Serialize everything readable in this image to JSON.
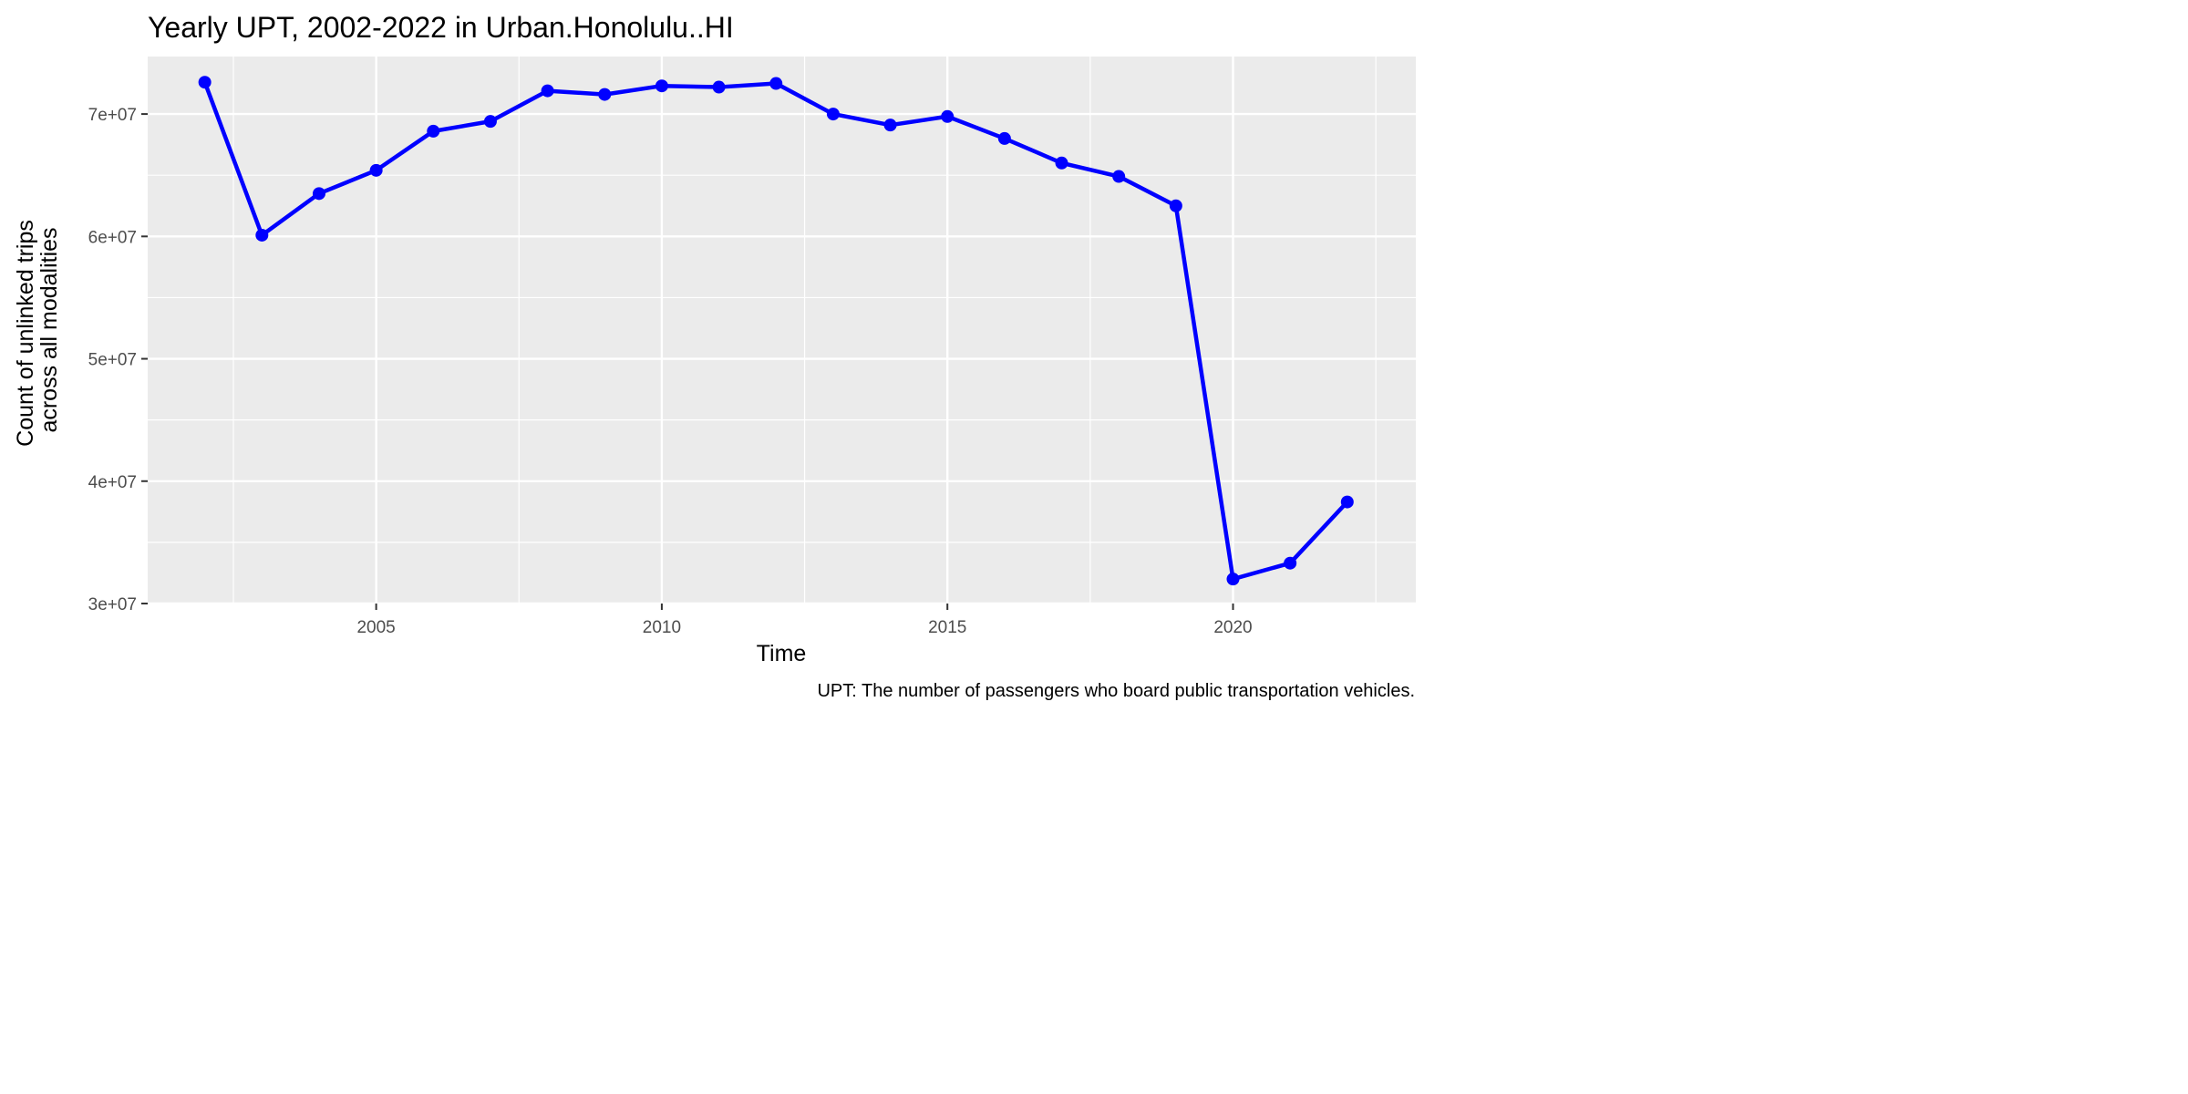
{
  "chart_data": {
    "type": "line",
    "title": "Yearly UPT, 2002-2022 in Urban.Honolulu..HI",
    "xlabel": "Time",
    "ylabel_lines": [
      "Count of unlinked trips",
      "across all modalities"
    ],
    "caption": "UPT: The number of passengers who board public transportation vehicles.",
    "x": [
      2002,
      2003,
      2004,
      2005,
      2006,
      2007,
      2008,
      2009,
      2010,
      2011,
      2012,
      2013,
      2014,
      2015,
      2016,
      2017,
      2018,
      2019,
      2020,
      2021,
      2022
    ],
    "series": [
      {
        "values": [
          72600000,
          60100000,
          63500000,
          65400000,
          68600000,
          69400000,
          71900000,
          71600000,
          72300000,
          72200000,
          72500000,
          70000000,
          69100000,
          69800000,
          68000000,
          66000000,
          64900000,
          62500000,
          32000000,
          33300000,
          38300000
        ],
        "color": "#0000ff"
      }
    ],
    "xlim": [
      2001.0,
      2023.2
    ],
    "ylim": [
      30000000,
      74700000
    ],
    "x_ticks": [
      2005,
      2010,
      2015,
      2020
    ],
    "x_tick_labels": [
      "2005",
      "2010",
      "2015",
      "2020"
    ],
    "x_minor_ticks": [
      2002.5,
      2007.5,
      2012.5,
      2017.5,
      2022.5
    ],
    "y_ticks": [
      30000000,
      40000000,
      50000000,
      60000000,
      70000000
    ],
    "y_tick_labels": [
      "3e+07",
      "4e+07",
      "5e+07",
      "6e+07",
      "7e+07"
    ],
    "y_minor_ticks": [
      35000000,
      45000000,
      55000000,
      65000000
    ],
    "grid": true,
    "panel_background": "#ebebeb",
    "grid_color": "#ffffff",
    "tick_text_color": "#4d4d4d",
    "legend": "none"
  }
}
